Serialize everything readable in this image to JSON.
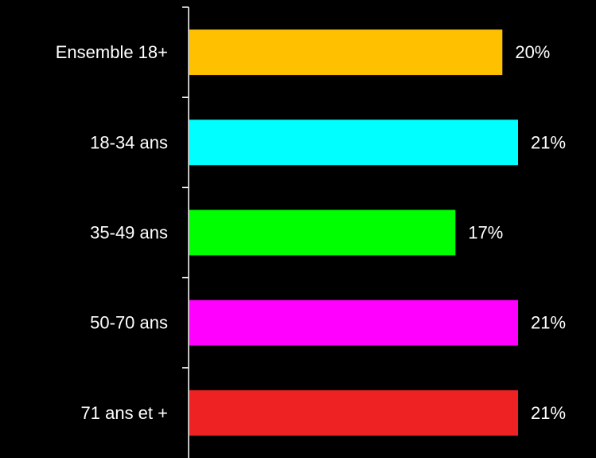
{
  "chart_data": {
    "type": "bar",
    "orientation": "horizontal",
    "categories": [
      "Ensemble 18+",
      "18-34 ans",
      "35-49 ans",
      "50-70 ans",
      "71 ans et +"
    ],
    "values": [
      20,
      21,
      17,
      21,
      21
    ],
    "value_labels": [
      "20%",
      "21%",
      "17%",
      "21%",
      "21%"
    ],
    "colors": [
      "#ffc000",
      "#00ffff",
      "#00ff00",
      "#ff00ff",
      "#ee2222"
    ],
    "background": "#000000",
    "axis_color": "#ffffff",
    "xlim": [
      0,
      21
    ],
    "grid": false,
    "legend": "none"
  }
}
